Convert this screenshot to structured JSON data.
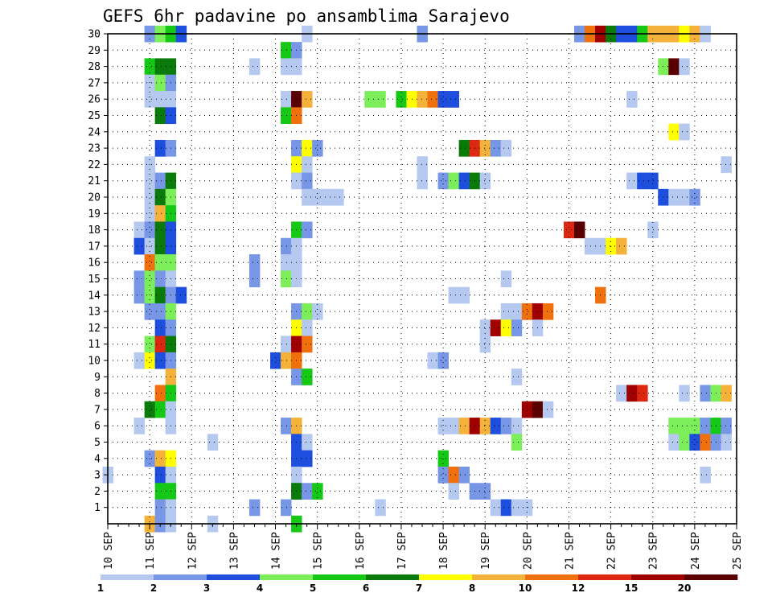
{
  "chart_data": {
    "type": "heatmap",
    "title": "GEFS 6hr padavine po ansamblima Sarajevo",
    "xlabel": "",
    "ylabel": "",
    "x_unit": "6-hour steps from 10 SEP 00Z",
    "xlim": [
      0,
      60
    ],
    "ylim": [
      0,
      30
    ],
    "x_tick_labels": [
      "10 SEP",
      "11 SEP",
      "12 SEP",
      "13 SEP",
      "14 SEP",
      "15 SEP",
      "16 SEP",
      "17 SEP",
      "18 SEP",
      "19 SEP",
      "20 SEP",
      "21 SEP",
      "22 SEP",
      "23 SEP",
      "24 SEP",
      "25 SEP"
    ],
    "y_tick_labels": [
      "1",
      "2",
      "3",
      "4",
      "5",
      "6",
      "7",
      "8",
      "9",
      "10",
      "11",
      "12",
      "13",
      "14",
      "15",
      "16",
      "17",
      "18",
      "19",
      "20",
      "21",
      "22",
      "23",
      "24",
      "25",
      "26",
      "27",
      "28",
      "29",
      "30"
    ],
    "grid": true,
    "legend": {
      "position": "bottom",
      "colors": [
        "#b4c8f0",
        "#7896e6",
        "#1e4ede",
        "#7cee5a",
        "#16c816",
        "#0a7a0a",
        "#ffff00",
        "#f4b23a",
        "#f0700e",
        "#dc2810",
        "#a00000",
        "#5a0000"
      ],
      "labels": [
        "1",
        "2",
        "3",
        "4",
        "5",
        "6",
        "7",
        "8",
        "10",
        "12",
        "15",
        "20"
      ]
    },
    "cells": [
      [
        4,
        30,
        2
      ],
      [
        5,
        30,
        4
      ],
      [
        6,
        30,
        5
      ],
      [
        7,
        30,
        3
      ],
      [
        19,
        30,
        1
      ],
      [
        30,
        30,
        2
      ],
      [
        45,
        30,
        2
      ],
      [
        46,
        30,
        10
      ],
      [
        47,
        30,
        15
      ],
      [
        48,
        30,
        6
      ],
      [
        49,
        30,
        3
      ],
      [
        50,
        30,
        3
      ],
      [
        51,
        30,
        5
      ],
      [
        52,
        30,
        8
      ],
      [
        53,
        30,
        8
      ],
      [
        54,
        30,
        8
      ],
      [
        55,
        30,
        7
      ],
      [
        56,
        30,
        8
      ],
      [
        57,
        30,
        1
      ],
      [
        17,
        29,
        5
      ],
      [
        18,
        29,
        2
      ],
      [
        4,
        28,
        5
      ],
      [
        5,
        28,
        6
      ],
      [
        6,
        28,
        6
      ],
      [
        14,
        28,
        1
      ],
      [
        17,
        28,
        1
      ],
      [
        18,
        28,
        1
      ],
      [
        53,
        28,
        4
      ],
      [
        54,
        28,
        20
      ],
      [
        55,
        28,
        1
      ],
      [
        4,
        27,
        1
      ],
      [
        5,
        27,
        4
      ],
      [
        6,
        27,
        2
      ],
      [
        4,
        26,
        1
      ],
      [
        5,
        26,
        1
      ],
      [
        6,
        26,
        1
      ],
      [
        17,
        26,
        1
      ],
      [
        18,
        26,
        20
      ],
      [
        19,
        26,
        8
      ],
      [
        25,
        26,
        4
      ],
      [
        26,
        26,
        4
      ],
      [
        28,
        26,
        5
      ],
      [
        29,
        26,
        7
      ],
      [
        30,
        26,
        8
      ],
      [
        31,
        26,
        10
      ],
      [
        32,
        26,
        3
      ],
      [
        33,
        26,
        3
      ],
      [
        50,
        26,
        1
      ],
      [
        5,
        25,
        6
      ],
      [
        6,
        25,
        3
      ],
      [
        17,
        25,
        5
      ],
      [
        18,
        25,
        10
      ],
      [
        54,
        24,
        7
      ],
      [
        55,
        24,
        1
      ],
      [
        5,
        23,
        3
      ],
      [
        6,
        23,
        2
      ],
      [
        18,
        23,
        2
      ],
      [
        19,
        23,
        7
      ],
      [
        20,
        23,
        2
      ],
      [
        34,
        23,
        6
      ],
      [
        35,
        23,
        12
      ],
      [
        36,
        23,
        8
      ],
      [
        37,
        23,
        2
      ],
      [
        38,
        23,
        1
      ],
      [
        4,
        22,
        1
      ],
      [
        18,
        22,
        7
      ],
      [
        19,
        22,
        1
      ],
      [
        30,
        22,
        1
      ],
      [
        59,
        22,
        1
      ],
      [
        4,
        21,
        1
      ],
      [
        5,
        21,
        2
      ],
      [
        6,
        21,
        6
      ],
      [
        18,
        21,
        1
      ],
      [
        19,
        21,
        2
      ],
      [
        30,
        21,
        1
      ],
      [
        32,
        21,
        2
      ],
      [
        33,
        21,
        4
      ],
      [
        34,
        21,
        3
      ],
      [
        35,
        21,
        6
      ],
      [
        36,
        21,
        1
      ],
      [
        50,
        21,
        1
      ],
      [
        51,
        21,
        3
      ],
      [
        52,
        21,
        3
      ],
      [
        4,
        20,
        1
      ],
      [
        5,
        20,
        6
      ],
      [
        6,
        20,
        4
      ],
      [
        19,
        20,
        1
      ],
      [
        20,
        20,
        1
      ],
      [
        21,
        20,
        1
      ],
      [
        22,
        20,
        1
      ],
      [
        53,
        20,
        3
      ],
      [
        54,
        20,
        1
      ],
      [
        55,
        20,
        1
      ],
      [
        56,
        20,
        2
      ],
      [
        4,
        19,
        1
      ],
      [
        5,
        19,
        8
      ],
      [
        6,
        19,
        5
      ],
      [
        3,
        18,
        1
      ],
      [
        4,
        18,
        2
      ],
      [
        5,
        18,
        6
      ],
      [
        6,
        18,
        3
      ],
      [
        18,
        18,
        5
      ],
      [
        19,
        18,
        2
      ],
      [
        44,
        18,
        12
      ],
      [
        45,
        18,
        20
      ],
      [
        52,
        18,
        1
      ],
      [
        3,
        17,
        3
      ],
      [
        4,
        17,
        1
      ],
      [
        5,
        17,
        6
      ],
      [
        6,
        17,
        3
      ],
      [
        17,
        17,
        2
      ],
      [
        18,
        17,
        1
      ],
      [
        46,
        17,
        1
      ],
      [
        47,
        17,
        1
      ],
      [
        48,
        17,
        7
      ],
      [
        49,
        17,
        8
      ],
      [
        4,
        16,
        10
      ],
      [
        5,
        16,
        4
      ],
      [
        6,
        16,
        4
      ],
      [
        14,
        16,
        2
      ],
      [
        17,
        16,
        1
      ],
      [
        18,
        16,
        1
      ],
      [
        3,
        15,
        2
      ],
      [
        4,
        15,
        4
      ],
      [
        5,
        15,
        2
      ],
      [
        6,
        15,
        1
      ],
      [
        14,
        15,
        2
      ],
      [
        17,
        15,
        4
      ],
      [
        18,
        15,
        1
      ],
      [
        38,
        15,
        1
      ],
      [
        3,
        14,
        2
      ],
      [
        4,
        14,
        4
      ],
      [
        5,
        14,
        6
      ],
      [
        6,
        14,
        2
      ],
      [
        7,
        14,
        3
      ],
      [
        33,
        14,
        1
      ],
      [
        34,
        14,
        1
      ],
      [
        47,
        14,
        10
      ],
      [
        4,
        13,
        2
      ],
      [
        5,
        13,
        2
      ],
      [
        6,
        13,
        4
      ],
      [
        18,
        13,
        2
      ],
      [
        19,
        13,
        4
      ],
      [
        20,
        13,
        1
      ],
      [
        38,
        13,
        1
      ],
      [
        39,
        13,
        1
      ],
      [
        40,
        13,
        10
      ],
      [
        41,
        13,
        15
      ],
      [
        42,
        13,
        10
      ],
      [
        5,
        12,
        3
      ],
      [
        6,
        12,
        2
      ],
      [
        18,
        12,
        7
      ],
      [
        19,
        12,
        1
      ],
      [
        36,
        12,
        1
      ],
      [
        37,
        12,
        15
      ],
      [
        38,
        12,
        7
      ],
      [
        39,
        12,
        2
      ],
      [
        41,
        12,
        1
      ],
      [
        4,
        11,
        4
      ],
      [
        5,
        11,
        12
      ],
      [
        6,
        11,
        6
      ],
      [
        17,
        11,
        1
      ],
      [
        18,
        11,
        15
      ],
      [
        19,
        11,
        10
      ],
      [
        36,
        11,
        1
      ],
      [
        3,
        10,
        1
      ],
      [
        4,
        10,
        7
      ],
      [
        5,
        10,
        3
      ],
      [
        6,
        10,
        2
      ],
      [
        16,
        10,
        3
      ],
      [
        17,
        10,
        8
      ],
      [
        18,
        10,
        10
      ],
      [
        31,
        10,
        1
      ],
      [
        32,
        10,
        2
      ],
      [
        6,
        9,
        8
      ],
      [
        18,
        9,
        2
      ],
      [
        19,
        9,
        5
      ],
      [
        39,
        9,
        1
      ],
      [
        5,
        8,
        10
      ],
      [
        6,
        8,
        5
      ],
      [
        49,
        8,
        1
      ],
      [
        50,
        8,
        15
      ],
      [
        51,
        8,
        12
      ],
      [
        55,
        8,
        1
      ],
      [
        57,
        8,
        2
      ],
      [
        58,
        8,
        4
      ],
      [
        59,
        8,
        8
      ],
      [
        4,
        7,
        6
      ],
      [
        5,
        7,
        5
      ],
      [
        6,
        7,
        1
      ],
      [
        40,
        7,
        15
      ],
      [
        41,
        7,
        20
      ],
      [
        42,
        7,
        1
      ],
      [
        3,
        6,
        1
      ],
      [
        6,
        6,
        1
      ],
      [
        17,
        6,
        2
      ],
      [
        18,
        6,
        8
      ],
      [
        32,
        6,
        1
      ],
      [
        33,
        6,
        1
      ],
      [
        34,
        6,
        8
      ],
      [
        35,
        6,
        15
      ],
      [
        36,
        6,
        8
      ],
      [
        37,
        6,
        3
      ],
      [
        38,
        6,
        2
      ],
      [
        39,
        6,
        1
      ],
      [
        54,
        6,
        4
      ],
      [
        55,
        6,
        4
      ],
      [
        56,
        6,
        4
      ],
      [
        57,
        6,
        2
      ],
      [
        58,
        6,
        5
      ],
      [
        59,
        6,
        2
      ],
      [
        10,
        5,
        1
      ],
      [
        18,
        5,
        3
      ],
      [
        19,
        5,
        1
      ],
      [
        39,
        5,
        4
      ],
      [
        54,
        5,
        1
      ],
      [
        55,
        5,
        4
      ],
      [
        56,
        5,
        3
      ],
      [
        57,
        5,
        10
      ],
      [
        58,
        5,
        2
      ],
      [
        59,
        5,
        1
      ],
      [
        4,
        4,
        2
      ],
      [
        5,
        4,
        8
      ],
      [
        6,
        4,
        7
      ],
      [
        18,
        4,
        3
      ],
      [
        19,
        4,
        3
      ],
      [
        32,
        4,
        5
      ],
      [
        0,
        3,
        1
      ],
      [
        5,
        3,
        3
      ],
      [
        6,
        3,
        1
      ],
      [
        18,
        3,
        1
      ],
      [
        32,
        3,
        2
      ],
      [
        33,
        3,
        10
      ],
      [
        34,
        3,
        2
      ],
      [
        57,
        3,
        1
      ],
      [
        5,
        2,
        5
      ],
      [
        6,
        2,
        5
      ],
      [
        18,
        2,
        6
      ],
      [
        19,
        2,
        2
      ],
      [
        20,
        2,
        5
      ],
      [
        33,
        2,
        1
      ],
      [
        35,
        2,
        2
      ],
      [
        36,
        2,
        2
      ],
      [
        5,
        1,
        2
      ],
      [
        6,
        1,
        1
      ],
      [
        14,
        1,
        2
      ],
      [
        17,
        1,
        2
      ],
      [
        26,
        1,
        1
      ],
      [
        37,
        1,
        1
      ],
      [
        38,
        1,
        3
      ],
      [
        39,
        1,
        1
      ],
      [
        40,
        1,
        1
      ],
      [
        4,
        0,
        8
      ],
      [
        5,
        0,
        2
      ],
      [
        6,
        0,
        1
      ],
      [
        10,
        0,
        1
      ],
      [
        18,
        0,
        5
      ]
    ]
  }
}
